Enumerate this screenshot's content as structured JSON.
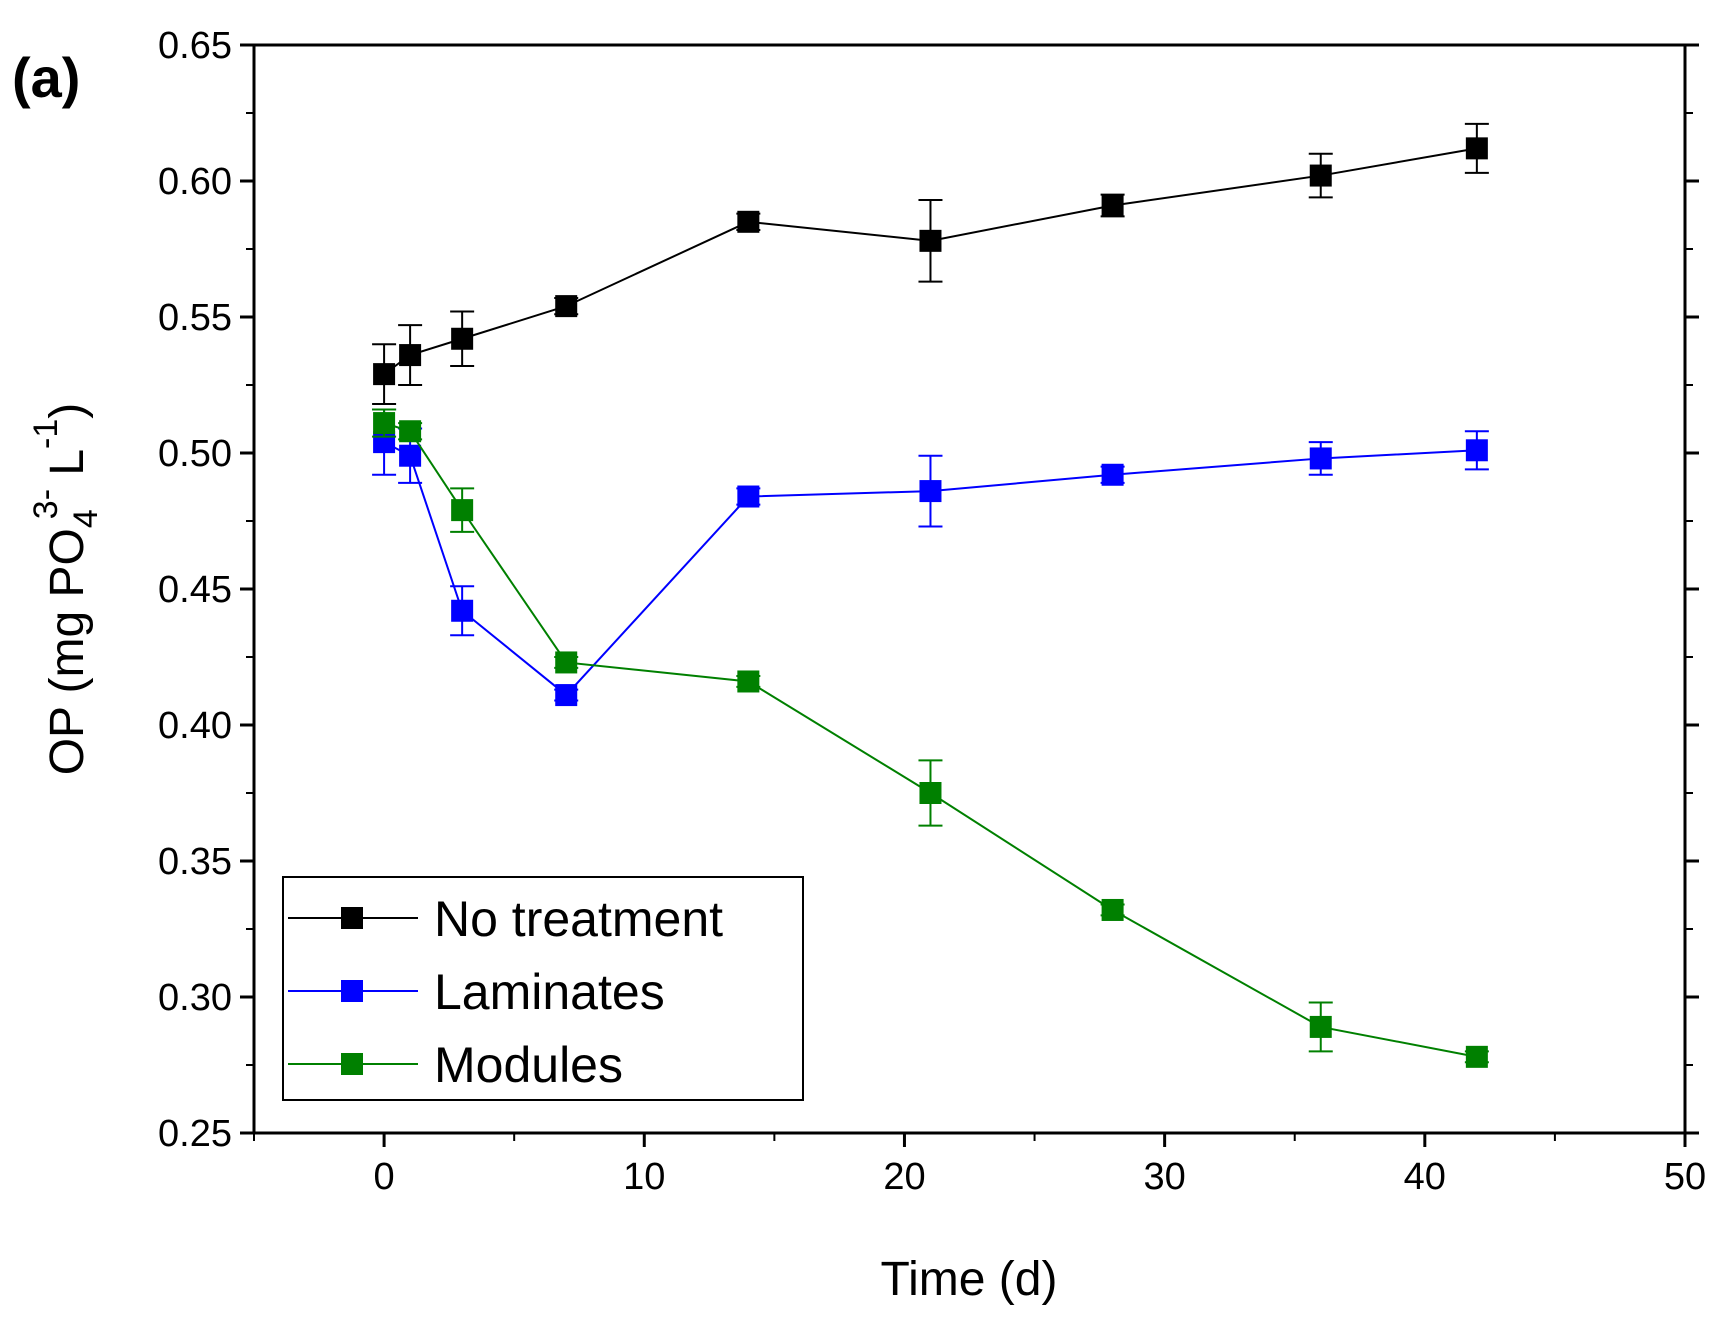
{
  "chart_data": {
    "type": "line",
    "panel_label": "(a)",
    "xlabel": "Time (d)",
    "ylabel": {
      "prefix": "OP (mg PO",
      "subscript": "4",
      "superscript": "3-",
      "middle": " L",
      "superscript2": "-1",
      "suffix": ")"
    },
    "xlim": [
      -5,
      50
    ],
    "ylim": [
      0.25,
      0.65
    ],
    "xticks": [
      0,
      10,
      20,
      30,
      40,
      50
    ],
    "yticks": [
      0.25,
      0.3,
      0.35,
      0.4,
      0.45,
      0.5,
      0.55,
      0.6,
      0.65
    ],
    "xtick_labels": [
      "0",
      "10",
      "20",
      "30",
      "40",
      "50"
    ],
    "ytick_labels": [
      "0.25",
      "0.30",
      "0.35",
      "0.40",
      "0.45",
      "0.50",
      "0.55",
      "0.60",
      "0.65"
    ],
    "grid": false,
    "legend_position": "bottom-left",
    "series": [
      {
        "name": "No treatment",
        "color": "#000000",
        "x": [
          0,
          1,
          3,
          7,
          14,
          21,
          28,
          36,
          42
        ],
        "y": [
          0.529,
          0.536,
          0.542,
          0.554,
          0.585,
          0.578,
          0.591,
          0.602,
          0.612
        ],
        "err": [
          0.011,
          0.011,
          0.01,
          0.003,
          0.003,
          0.015,
          0.004,
          0.008,
          0.009
        ]
      },
      {
        "name": "Laminates",
        "color": "#0000ff",
        "x": [
          0,
          1,
          3,
          7,
          14,
          21,
          28,
          36,
          42
        ],
        "y": [
          0.504,
          0.499,
          0.442,
          0.411,
          0.484,
          0.486,
          0.492,
          0.498,
          0.501
        ],
        "err": [
          0.012,
          0.01,
          0.009,
          0.002,
          0.003,
          0.013,
          0.003,
          0.006,
          0.007
        ]
      },
      {
        "name": "Modules",
        "color": "#008000",
        "x": [
          0,
          1,
          3,
          7,
          14,
          21,
          28,
          36,
          42
        ],
        "y": [
          0.511,
          0.508,
          0.479,
          0.423,
          0.416,
          0.375,
          0.332,
          0.289,
          0.278
        ],
        "err": [
          0.005,
          0.003,
          0.008,
          0.002,
          0.002,
          0.012,
          0.002,
          0.009,
          0.002
        ]
      }
    ]
  }
}
